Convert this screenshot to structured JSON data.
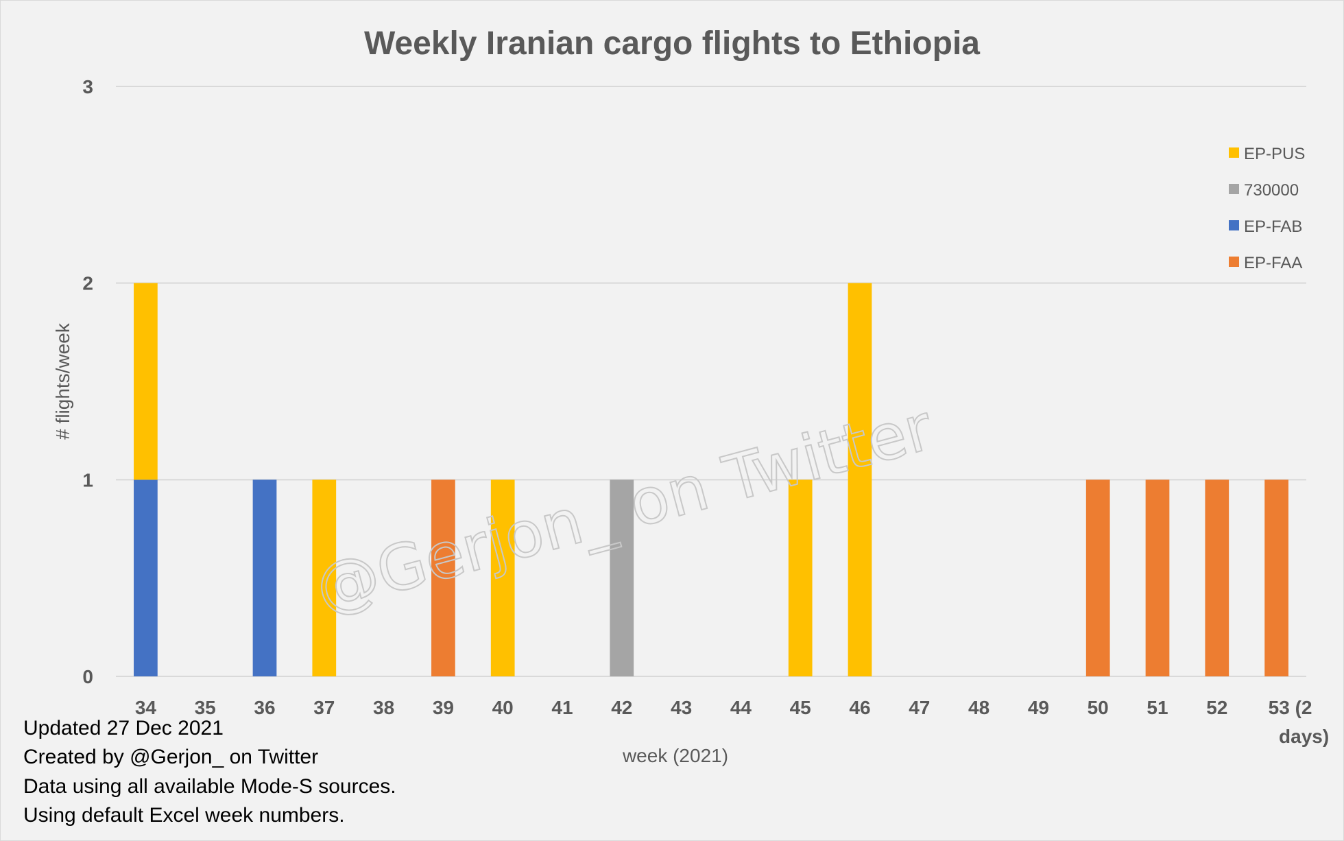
{
  "chart_data": {
    "type": "bar",
    "stacked": true,
    "title": "Weekly Iranian cargo flights to Ethiopia",
    "xlabel": "week (2021)",
    "ylabel": "# flights/week",
    "ylim": [
      0,
      3
    ],
    "yticks": [
      "0",
      "1",
      "2",
      "3"
    ],
    "grid": true,
    "legend_position": "right",
    "categories": [
      "34",
      "35",
      "36",
      "37",
      "38",
      "39",
      "40",
      "41",
      "42",
      "43",
      "44",
      "45",
      "46",
      "47",
      "48",
      "49",
      "50",
      "51",
      "52",
      "53 (2 days)"
    ],
    "series": [
      {
        "name": "EP-FAA",
        "color": "#ed7d31",
        "values": [
          0,
          0,
          0,
          0,
          0,
          1,
          0,
          0,
          0,
          0,
          0,
          0,
          0,
          0,
          0,
          0,
          1,
          1,
          1,
          1
        ]
      },
      {
        "name": "EP-FAB",
        "color": "#4472c4",
        "values": [
          1,
          0,
          1,
          0,
          0,
          0,
          0,
          0,
          0,
          0,
          0,
          0,
          0,
          0,
          0,
          0,
          0,
          0,
          0,
          0
        ]
      },
      {
        "name": "730000",
        "color": "#a5a5a5",
        "values": [
          0,
          0,
          0,
          0,
          0,
          0,
          0,
          0,
          1,
          0,
          0,
          0,
          0,
          0,
          0,
          0,
          0,
          0,
          0,
          0
        ]
      },
      {
        "name": "EP-PUS",
        "color": "#ffc000",
        "values": [
          1,
          0,
          0,
          1,
          0,
          0,
          1,
          0,
          0,
          0,
          0,
          1,
          2,
          0,
          0,
          0,
          0,
          0,
          0,
          0
        ]
      }
    ],
    "legend_order": [
      "EP-PUS",
      "730000",
      "EP-FAB",
      "EP-FAA"
    ]
  },
  "notes": [
    "Updated 27 Dec 2021",
    "Created by @Gerjon_ on Twitter",
    "Data using all available Mode-S sources.",
    "Using default Excel week numbers."
  ],
  "watermark": "@Gerjon_ on Twitter"
}
